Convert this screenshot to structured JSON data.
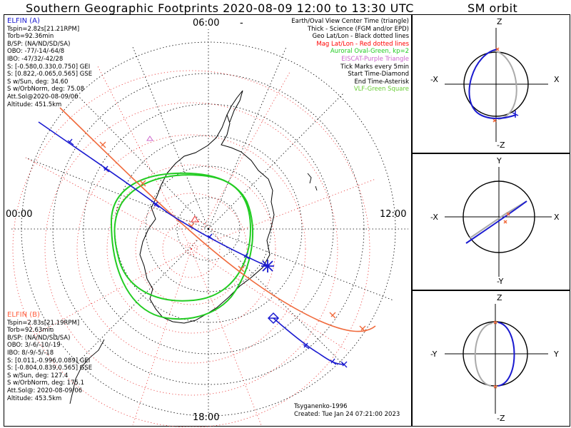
{
  "header": {
    "title": "Southern Geographic Footprints 2020-08-09 12:00 to 13:30 UTC",
    "orbit_title": "SM orbit"
  },
  "map": {
    "mlt_labels": {
      "top": "06:00",
      "left": "00:00",
      "right": "12:00",
      "bottom": "18:00"
    },
    "dash_mark": "-",
    "elfin_a": {
      "name": "ELFIN (A)",
      "color": "#1a1ad0",
      "lines": [
        "Tspin=2.82s[21.21RPM]",
        "Torb=92.36min",
        "B/SP: (NA/ND/SD/SA)",
        "OBO: -77/-14/-64/8",
        "IBO: -47/32/-42/28",
        "S: [-0.580,0.330,0.750] GEI",
        "S: [0.822,-0.065,0.565] GSE",
        "S w/Sun, deg: 34.60",
        "S w/OrbNorm, deg: 75.08",
        "Att.Sol@2020-08-09/06",
        "Altitude: 451.5km"
      ]
    },
    "elfin_b": {
      "name": "ELFIN (B)",
      "color": "#ff6040",
      "lines": [
        "Tspin=2.83s[21.19RPM]",
        "Torb=92.63min",
        "B/SP: (NA/ND/SD/SA)",
        "OBO: 3/-6/-10/-19",
        "IBO: 8/-9/-5/-18",
        "S: [0.011,-0.996,0.089] GEI",
        "S: [-0.804,0.839,0.565] GSE",
        "S w/Sun, deg: 127.4",
        "S w/OrbNorm, deg: 175.1",
        "Att.Sol@: 2020-08-09/06",
        "Altitude: 453.5km"
      ]
    },
    "legend": [
      {
        "text": "Earth/Oval View Center Time (triangle)",
        "color": "#000000"
      },
      {
        "text": "Thick - Science (FGM and/or EPD)",
        "color": "#000000"
      },
      {
        "text": "Geo Lat/Lon - Black dotted lines",
        "color": "#000000"
      },
      {
        "text": "Mag Lat/Lon - Red dotted lines",
        "color": "#ff0000"
      },
      {
        "text": "Auroral Oval-Green, kp=2",
        "color": "#22cc22"
      },
      {
        "text": "EISCAT-Purple Triangle",
        "color": "#cc66cc"
      },
      {
        "text": "Tick Marks every 5min",
        "color": "#000000"
      },
      {
        "text": "Start Time-Diamond",
        "color": "#000000"
      },
      {
        "text": "End Time-Asterisk",
        "color": "#000000"
      },
      {
        "text": "VLF-Green Square",
        "color": "#66cc33"
      }
    ],
    "credits": [
      "Tsyganenko-1996",
      "Created: Tue Jan 24 07:21:00 2023"
    ]
  },
  "sm_orbit": {
    "panels": [
      {
        "top": "Z",
        "bottom": "-Z",
        "left": "-X",
        "right": "X"
      },
      {
        "top": "Y",
        "bottom": "-Y",
        "left": "-X",
        "right": "X"
      },
      {
        "top": "Z",
        "bottom": "-Z",
        "left": "-Y",
        "right": "Y"
      }
    ]
  }
}
